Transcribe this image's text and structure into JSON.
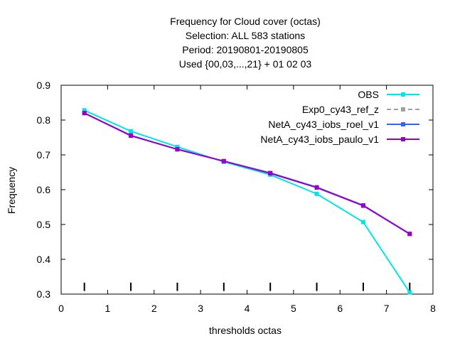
{
  "chart_data": {
    "type": "line",
    "title_lines": [
      "Frequency  for Cloud cover (octas)",
      "Selection: ALL    583 stations",
      "Period: 20190801-20190805",
      "Used {00,03,...,21} + 01 02 03"
    ],
    "xlabel": "thresholds octas",
    "ylabel": "Frequency",
    "xlim": [
      0,
      8
    ],
    "ylim": [
      0.3,
      0.9
    ],
    "xticks": [
      "0",
      "1",
      "2",
      "3",
      "4",
      "5",
      "6",
      "7",
      "8"
    ],
    "yticks": [
      "0.3",
      "0.4",
      "0.5",
      "0.6",
      "0.7",
      "0.8",
      "0.9"
    ],
    "grid": false,
    "legend_position": "top-right",
    "x": [
      0.5,
      1.5,
      2.5,
      3.5,
      4.5,
      5.5,
      6.5,
      7.5
    ],
    "threshold_markers": [
      0.5,
      1.5,
      2.5,
      3.5,
      4.5,
      5.5,
      6.5,
      7.5
    ],
    "series": [
      {
        "name": "OBS",
        "color": "#00e5e5",
        "dash": false,
        "values": [
          0.828,
          0.768,
          0.723,
          0.68,
          0.643,
          0.588,
          0.507,
          0.305
        ]
      },
      {
        "name": "Exp0_cy43_ref_z",
        "color": "#a0a0a0",
        "dash": true,
        "values": [
          0.82,
          0.756,
          0.716,
          0.682,
          0.648,
          0.607,
          0.555,
          0.473
        ]
      },
      {
        "name": "NetA_cy43_iobs_roel_v1",
        "color": "#3366ee",
        "dash": false,
        "values": [
          0.82,
          0.756,
          0.716,
          0.682,
          0.648,
          0.607,
          0.555,
          0.473
        ]
      },
      {
        "name": "NetA_cy43_iobs_paulo_v1",
        "color": "#9900cc",
        "dash": false,
        "values": [
          0.82,
          0.755,
          0.716,
          0.682,
          0.647,
          0.606,
          0.554,
          0.473
        ]
      }
    ]
  }
}
